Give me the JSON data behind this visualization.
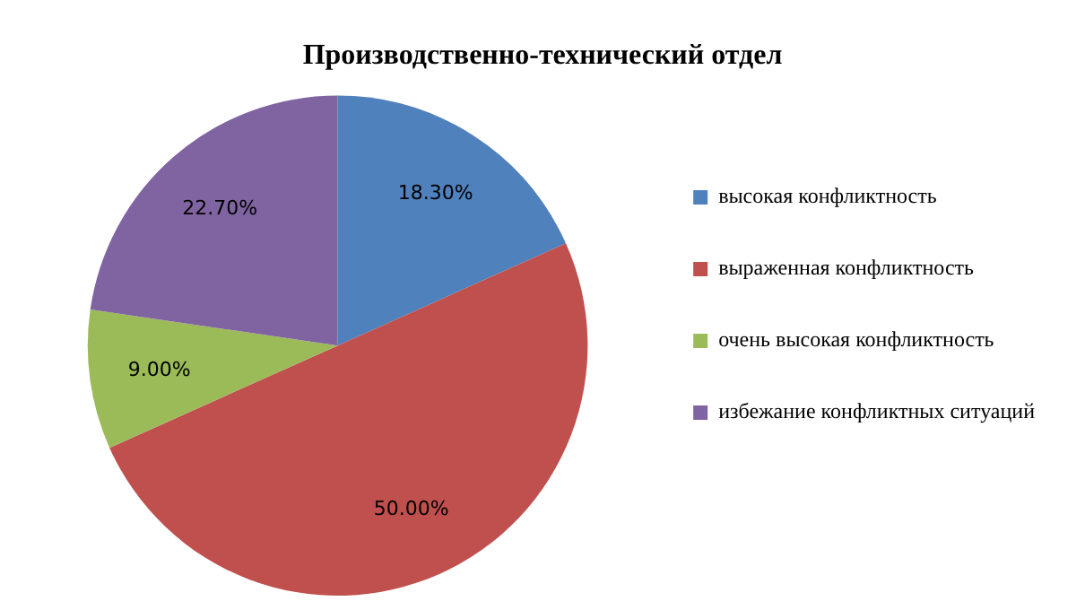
{
  "chart_data": {
    "type": "pie",
    "title": "Производственно-технический отдел",
    "categories": [
      "высокая конфликтность",
      "выраженная конфликтность",
      "очень высокая конфликтность",
      "избежание конфликтных ситуаций"
    ],
    "values": [
      18.3,
      50,
      9,
      22.7
    ],
    "colors": [
      "#4f81bd",
      "#c0504d",
      "#9bbb59",
      "#8064a2"
    ],
    "value_labels": [
      "18.30%",
      "50.00%",
      "9.00%",
      "22.70%"
    ],
    "legend": "right"
  }
}
